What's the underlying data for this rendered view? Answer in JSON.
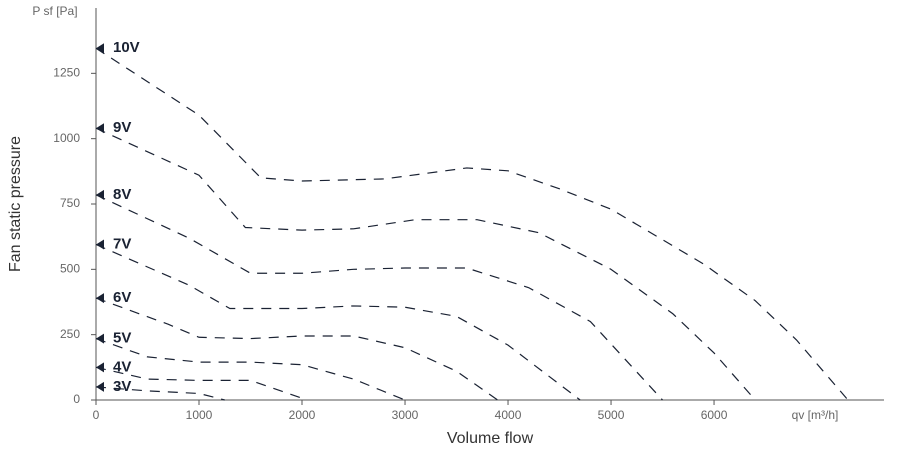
{
  "chart_data": {
    "type": "line",
    "y_unit_label": "P sf [Pa]",
    "x_unit_label": "qv [m³/h]",
    "ylabel": "Fan static pressure",
    "xlabel": "Volume flow",
    "xlim": [
      0,
      7650
    ],
    "ylim": [
      0,
      1500
    ],
    "xticks": [
      0,
      1000,
      2000,
      3000,
      4000,
      5000,
      6000
    ],
    "yticks": [
      0,
      250,
      500,
      750,
      1000,
      1250
    ],
    "grid": false,
    "series": [
      {
        "name": "10V",
        "color": "#1a2233",
        "x": [
          0,
          1000,
          1600,
          2000,
          2800,
          3600,
          4000,
          4500,
          5000,
          5900,
          6400,
          6800,
          7300
        ],
        "values": [
          1346,
          1090,
          850,
          838,
          846,
          888,
          877,
          808,
          730,
          520,
          380,
          230,
          0
        ]
      },
      {
        "name": "9V",
        "color": "#1a2233",
        "x": [
          0,
          1000,
          1450,
          2000,
          2500,
          3100,
          3700,
          4300,
          5000,
          5600,
          6000,
          6400
        ],
        "values": [
          1040,
          860,
          660,
          650,
          655,
          690,
          690,
          640,
          500,
          330,
          180,
          0
        ]
      },
      {
        "name": "8V",
        "color": "#1a2233",
        "x": [
          0,
          900,
          1500,
          2000,
          2500,
          3000,
          3600,
          4200,
          4800,
          5500
        ],
        "values": [
          785,
          620,
          485,
          485,
          500,
          505,
          505,
          430,
          300,
          0
        ]
      },
      {
        "name": "7V",
        "color": "#1a2233",
        "x": [
          0,
          900,
          1300,
          2000,
          2500,
          3000,
          3500,
          4000,
          4700
        ],
        "values": [
          595,
          440,
          350,
          350,
          360,
          355,
          320,
          210,
          0
        ]
      },
      {
        "name": "6V",
        "color": "#1a2233",
        "x": [
          0,
          700,
          1000,
          1500,
          2000,
          2500,
          3000,
          3500,
          3900
        ],
        "values": [
          390,
          290,
          240,
          235,
          245,
          245,
          200,
          110,
          0
        ]
      },
      {
        "name": "5V",
        "color": "#1a2233",
        "x": [
          0,
          500,
          1000,
          1500,
          2000,
          2500,
          3000
        ],
        "values": [
          235,
          165,
          145,
          145,
          135,
          80,
          0
        ]
      },
      {
        "name": "4V",
        "color": "#1a2233",
        "x": [
          0,
          500,
          1000,
          1500,
          2050
        ],
        "values": [
          125,
          80,
          75,
          75,
          0
        ]
      },
      {
        "name": "3V",
        "color": "#1a2233",
        "x": [
          0,
          500,
          1000,
          1250
        ],
        "values": [
          50,
          35,
          25,
          0
        ]
      }
    ]
  }
}
